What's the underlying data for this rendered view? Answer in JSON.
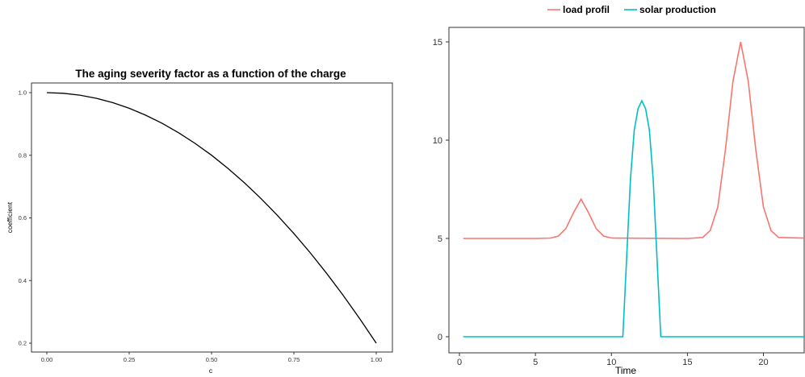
{
  "chart_data": [
    {
      "type": "line",
      "title": "The aging severity factor as a function of the charge",
      "xlabel": "c",
      "ylabel": "coefficient",
      "xlim": [
        0,
        1
      ],
      "ylim": [
        0.2,
        1.0
      ],
      "x_ticks": [
        "0.00",
        "0.25",
        "0.50",
        "0.75",
        "1.00"
      ],
      "y_ticks": [
        "0.2",
        "0.4",
        "0.6",
        "0.8",
        "1.0"
      ],
      "grid": false,
      "series": [
        {
          "color": "#000000",
          "x": [
            0.0,
            0.05,
            0.1,
            0.15,
            0.2,
            0.25,
            0.3,
            0.35,
            0.4,
            0.45,
            0.5,
            0.55,
            0.6,
            0.65,
            0.7,
            0.75,
            0.8,
            0.85,
            0.9,
            0.95,
            1.0
          ],
          "y": [
            1.0,
            0.998,
            0.992,
            0.982,
            0.968,
            0.95,
            0.928,
            0.902,
            0.872,
            0.838,
            0.8,
            0.758,
            0.712,
            0.662,
            0.608,
            0.55,
            0.488,
            0.422,
            0.352,
            0.278,
            0.2
          ]
        }
      ]
    },
    {
      "type": "line",
      "title": "",
      "xlabel": "Time",
      "ylabel": "",
      "xlim": [
        0,
        24
      ],
      "ylim": [
        0,
        15
      ],
      "x_ticks": [
        "0",
        "5",
        "10",
        "15",
        "20",
        "2"
      ],
      "y_ticks": [
        "0",
        "5",
        "10",
        "15"
      ],
      "grid": false,
      "legend_position": "top",
      "series": [
        {
          "name": "load profil",
          "color": "#F8766D",
          "x": [
            0.25,
            5.0,
            6.0,
            6.5,
            7.0,
            7.5,
            8.0,
            8.5,
            9.0,
            9.5,
            10.0,
            15.0,
            16.0,
            16.5,
            17.0,
            17.5,
            18.0,
            18.5,
            19.0,
            19.5,
            20.0,
            20.5,
            21.0,
            23.75
          ],
          "y": [
            5,
            5,
            5.02,
            5.12,
            5.5,
            6.3,
            7.0,
            6.3,
            5.5,
            5.12,
            5.02,
            5,
            5.05,
            5.4,
            6.6,
            9.5,
            13.0,
            15.0,
            13.0,
            9.5,
            6.6,
            5.4,
            5.05,
            5
          ]
        },
        {
          "name": "solar production",
          "color": "#00BFC4",
          "x": [
            0.25,
            10.75,
            11.0,
            11.25,
            11.5,
            11.75,
            12.0,
            12.25,
            12.5,
            12.75,
            13.0,
            13.25,
            23.75
          ],
          "y": [
            0,
            0,
            4.0,
            8.0,
            10.5,
            11.6,
            12.0,
            11.6,
            10.5,
            8.0,
            4.0,
            0,
            0
          ]
        }
      ]
    }
  ]
}
